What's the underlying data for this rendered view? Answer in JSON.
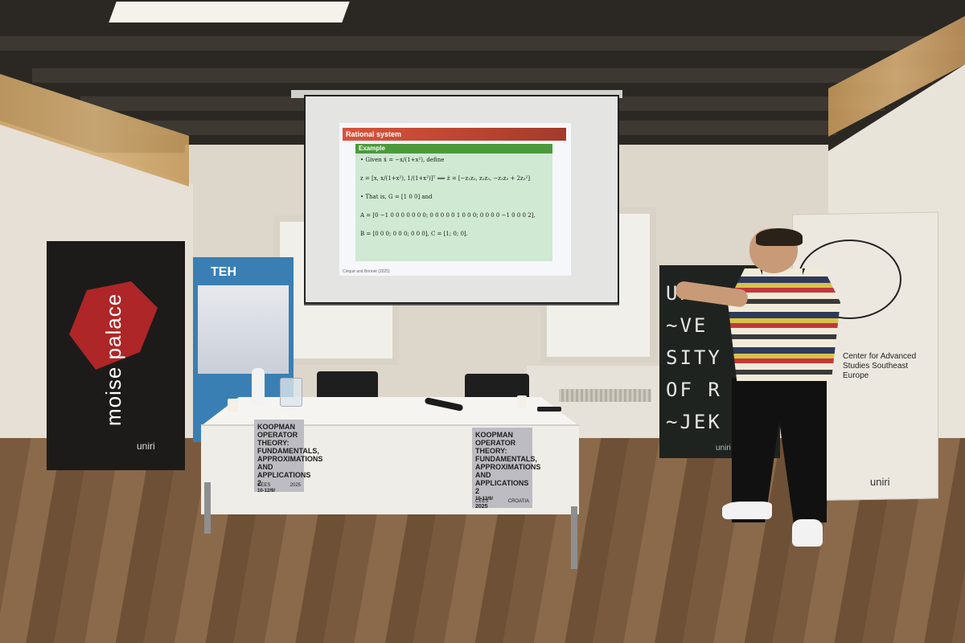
{
  "slide": {
    "title": "Rational system",
    "block_heading": "Example",
    "line1": "• Given ẋ = −x/(1+x²), define",
    "line2": "z = [x, x/(1+x²), 1/(1+x²)]ᵀ  ⟹  ż = [−z₁z₂, z₂z₃, −z₂z₃ + 2z₂²]",
    "line3": "• That is, G = [1 0 0] and",
    "line4": "A = [0 −1 0 0 0 0 0 0 0; 0 0 0 0 0 1 0 0 0; 0 0 0 0 −1 0 0 0 2],",
    "line5": "B = [0 0 0; 0 0 0; 0 0 0], C = [1; 0; 0].",
    "footer": "Cinqué and Bonnet (2025)"
  },
  "banners": {
    "moise": {
      "text": "moise palace",
      "logo": "uniri"
    },
    "teh": {
      "title": "TEH"
    },
    "uniri": {
      "text": "UNI\n~VE\nSITY\nOF R\n~JEK",
      "logo": "uniri"
    },
    "center": {
      "text": "Center for Advanced Studies Southeast Europe",
      "logo": "uniri"
    }
  },
  "posters": [
    {
      "title": "KOOPMAN OPERATOR THEORY: FUNDAMENTALS, APPROXIMATIONS AND APPLICATIONS 2",
      "dates": "10-12/9/",
      "year": "2025",
      "footer_left": "CEES",
      "footer_right": "CROATIA"
    },
    {
      "title": "KOOPMAN OPERATOR THEORY: FUNDAMENTALS, APPROXIMATIONS AND APPLICATIONS 2",
      "dates": "10-12/9/",
      "year": "2025",
      "footer_left": "CEES",
      "footer_right": "CROATIA"
    }
  ],
  "colors": {
    "slide_title_bar": "#d9533a",
    "slide_block_head": "#4c9a3c",
    "slide_block_body": "#cfe9d2",
    "moise_banner": "#1d1b1a",
    "teh_banner": "#3a7fb3",
    "floor": "#7a5a3e"
  }
}
